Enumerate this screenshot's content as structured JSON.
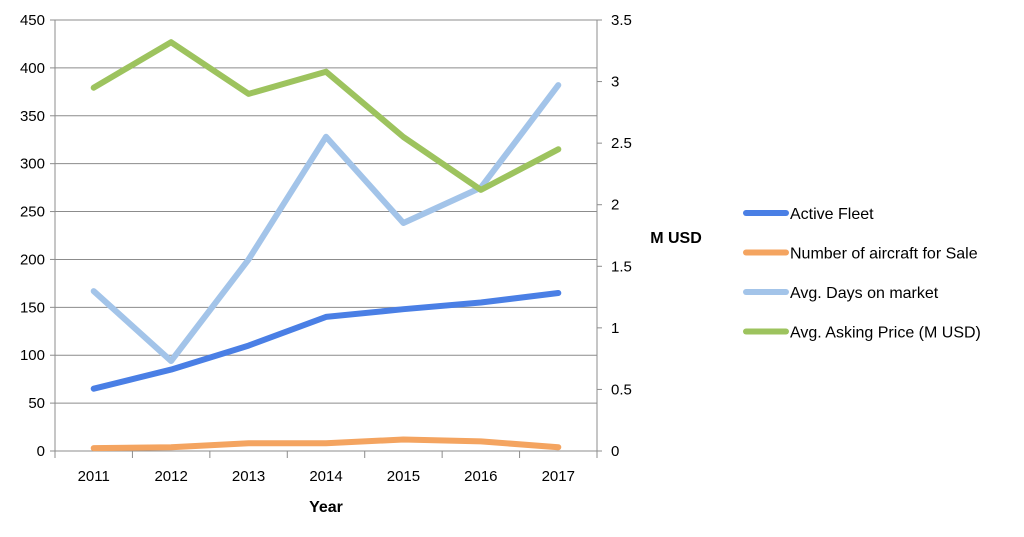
{
  "chart_data": {
    "type": "line",
    "title": "",
    "xlabel": "Year",
    "ylabel": "",
    "y2label": "M USD",
    "categories": [
      "2011",
      "2012",
      "2013",
      "2014",
      "2015",
      "2016",
      "2017"
    ],
    "ylim": [
      0,
      450
    ],
    "y_ticks": [
      0,
      50,
      100,
      150,
      200,
      250,
      300,
      350,
      400,
      450
    ],
    "y2lim": [
      0,
      3.5
    ],
    "y2_ticks": [
      "0",
      "0.5",
      "1",
      "1.5",
      "2",
      "2.5",
      "3",
      "3.5"
    ],
    "grid": true,
    "legend_position": "right",
    "series": [
      {
        "name": "Active Fleet",
        "axis": "left",
        "color": "#4a7fe5",
        "values": [
          65,
          85,
          110,
          140,
          148,
          155,
          165
        ]
      },
      {
        "name": "Number of aircraft for Sale",
        "axis": "left",
        "color": "#f4a460",
        "values": [
          3,
          4,
          8,
          8,
          12,
          10,
          4
        ]
      },
      {
        "name": "Avg. Days on market",
        "axis": "left",
        "color": "#a3c4e9",
        "values": [
          167,
          94,
          200,
          328,
          238,
          275,
          382
        ]
      },
      {
        "name": "Avg. Asking Price (M USD)",
        "axis": "right",
        "color": "#9dc35e",
        "values": [
          2.95,
          3.32,
          2.9,
          3.08,
          2.55,
          2.12,
          2.45
        ]
      }
    ]
  }
}
